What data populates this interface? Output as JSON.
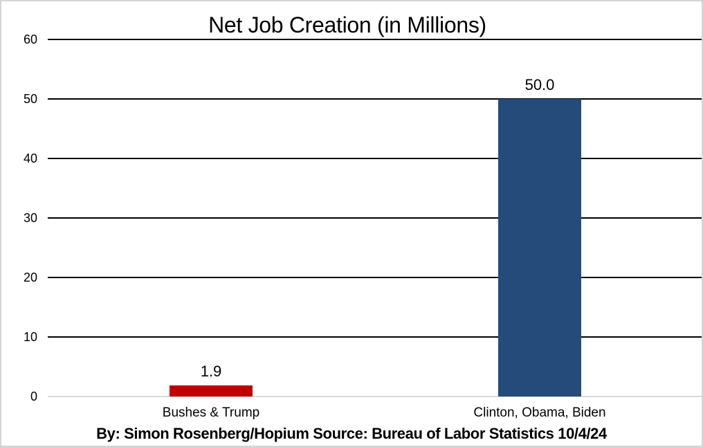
{
  "window": {
    "background": "#FFFFFF",
    "border_color": "#D5D5D5"
  },
  "chart_data": {
    "type": "bar",
    "title": "Net Job Creation (in Millions)",
    "categories": [
      "Bushes & Trump",
      "Clinton, Obama, Biden"
    ],
    "values": [
      1.9,
      50.0
    ],
    "value_labels": [
      "1.9",
      "50.0"
    ],
    "bar_colors": [
      "#C00000",
      "#244B7A"
    ],
    "ylim": [
      0,
      60
    ],
    "yticks": [
      0,
      10,
      20,
      30,
      40,
      50,
      60
    ],
    "ytick_labels": [
      "0",
      "10",
      "20",
      "30",
      "40",
      "50",
      "60"
    ],
    "xlabel": "",
    "ylabel": "",
    "grid": "horizontal-major",
    "gridline_color": "#000000",
    "baseline_color": "#D9D9D9",
    "legend": "none",
    "footer": "By: Simon Rosenberg/Hopium Source: Bureau of Labor Statistics 10/4/24"
  }
}
